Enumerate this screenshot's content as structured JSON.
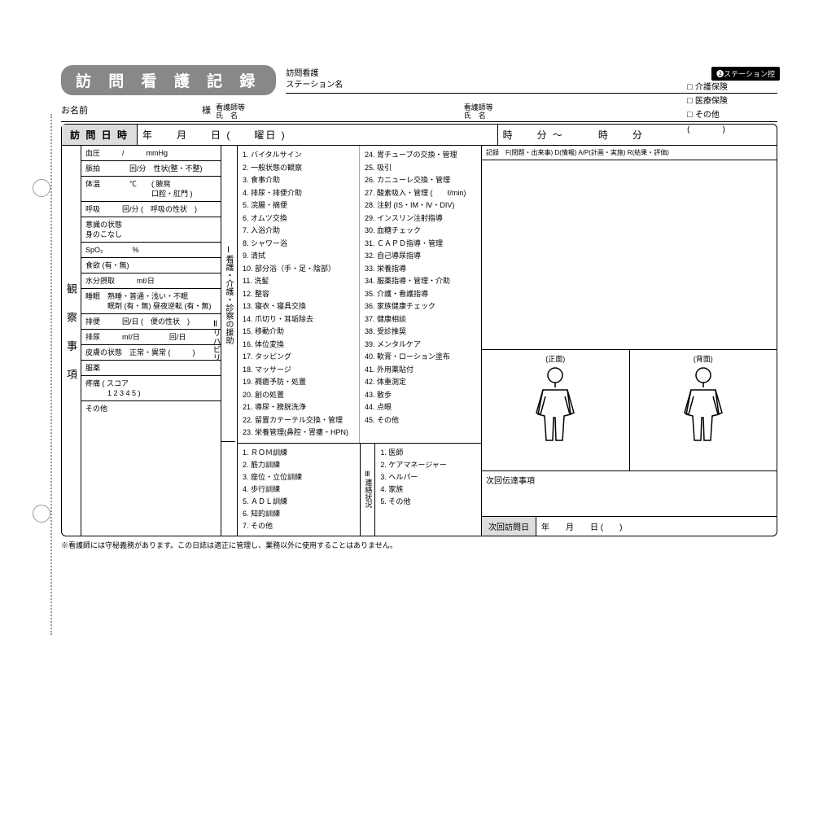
{
  "title": "訪 問 看 護 記 録",
  "station": {
    "line1": "訪問看護",
    "line2": "ステーション名"
  },
  "corner_badge": "❷ステーション控",
  "insurance": [
    "介護保険",
    "医療保険",
    "その他"
  ],
  "insurance_paren": "(　　　　)",
  "name_row": {
    "name_lbl": "お名前",
    "sama": "様",
    "nurse1_l1": "看護師等",
    "nurse1_l2": "氏　名",
    "nurse2_l1": "看護師等",
    "nurse2_l2": "氏　名"
  },
  "visit": {
    "header": "訪 問 日 時",
    "date": "年　　月　　日 (　　曜日 )",
    "time": "時　　分 〜　　　時　　分"
  },
  "obs_label": "観察事項",
  "obs_rows": [
    "血圧　　　/　　　mmHg",
    "脈拍　　　　回/分　性状(整・不整)",
    "体温　　　　℃　　( 腋窩\n　　　　　　　　　口腔・肛門 )",
    "呼吸　　　回/分 (　呼吸の性状　)",
    "意識の状態\n身のこなし",
    "SpO₂　　　　%",
    "食欲  (有・無)",
    "水分摂取　　　mℓ/日",
    "睡眠　熟睡・普通・浅い・不眠\n　　　眠剤 (有・無) 昼夜逆転 (有・無)",
    "排便　　　回/日 (　便の性状　)",
    "排尿　　　mℓ/日　　　　回/日",
    "皮膚の状態　正常・異常 (　　　)",
    "服薬",
    "疼痛 ( スコア\n　　　1  2  3  4  5 )",
    "その他"
  ],
  "care_label_1": "Ⅰ看護・介護・診察の援助",
  "care_label_2": "Ⅱリハビリ",
  "care_items_a": [
    "1. バイタルサイン",
    "2. 一般状態の観察",
    "3. 食事介助",
    "4. 排尿・排便介助",
    "5. 浣腸・摘便",
    "6. オムツ交換",
    "7. 入浴介助",
    "8. シャワー浴",
    "9. 清拭",
    "10. 部分浴（手・足・陰部）",
    "11. 洗髪",
    "12. 整容",
    "13. 寝衣・寝具交換",
    "14. 爪切り・耳垢除去",
    "15. 移動介助",
    "16. 体位変換",
    "17. タッピング",
    "18. マッサージ",
    "19. 褥瘡予防・処置",
    "20. 創の処置",
    "21. 導尿・膀胱洗浄",
    "22. 留置カテーテル交換・管理",
    "23. 栄養管理(鼻腔・胃瘻・HPN)"
  ],
  "care_items_b": [
    "24. 胃チューブの交換・管理",
    "25. 吸引",
    "26. カニューレ交換・管理",
    "27. 酸素吸入・管理 (　　ℓ/min)",
    "28. 注射 (IS・IM・Ⅳ・DIV)",
    "29. インスリン注射指導",
    "30. 血糖チェック",
    "31. ＣＡＰＤ指導・管理",
    "32. 自己導尿指導",
    "33. 栄養指導",
    "34. 服薬指導・管理・介助",
    "35. 介護・看護指導",
    "36. 家族健康チェック",
    "37. 健康相談",
    "38. 受診推奨",
    "39. メンタルケア",
    "40. 軟膏・ローション塗布",
    "41. 外用薬貼付",
    "42. 体重測定",
    "43. 散歩",
    "44. 点眼",
    "45. その他"
  ],
  "rehab_items": [
    "1. ＲＯＭ訓練",
    "2. 筋力訓練",
    "3. 座位・立位訓練",
    "4. 歩行訓練",
    "5. ＡＤＬ訓練",
    "6. 知的訓練",
    "7. その他"
  ],
  "contact_label": "Ⅲ連絡状況",
  "contact_items": [
    "1. 医師",
    "2. ケアマネージャー",
    "3. ヘルパー",
    "4. 家族",
    "5. その他"
  ],
  "rec_head": "記録　F(問題・出来事) D(情報) A/P(計画・実施) R(結果・評価)",
  "body_front": "(正面)",
  "body_back": "(背面)",
  "next_msg": "次回伝達事項",
  "next_visit_h": "次回訪問日",
  "next_visit_c": "年　　月　　日 (　　)",
  "footnote": "※看護師には守秘義務があります。この日誌は適正に管理し、業務以外に使用することはありません。"
}
